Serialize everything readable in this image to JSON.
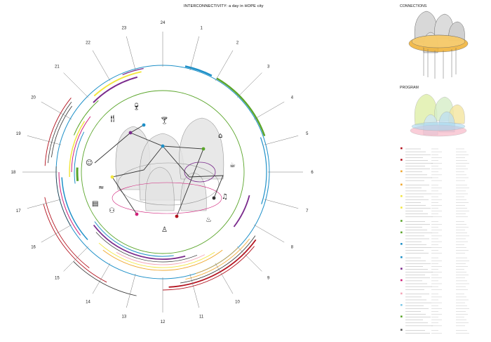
{
  "title": "INTERCONNECTIVITY: a day in HOPE city",
  "hours": [
    "1",
    "2",
    "3",
    "4",
    "5",
    "6",
    "7",
    "8",
    "9",
    "10",
    "11",
    "12",
    "13",
    "14",
    "15",
    "16",
    "17",
    "18",
    "19",
    "20",
    "21",
    "22",
    "23",
    "24"
  ],
  "panels": {
    "connections_title": "CONNECTIONS",
    "program_title": "PROGRAM"
  },
  "colors": {
    "blue": "#1e90c8",
    "green": "#5aa52a",
    "purple": "#7a2a8c",
    "magenta": "#d0207a",
    "yellow": "#f2e640",
    "orange": "#f0a830",
    "red": "#b3121e",
    "gray": "#555555",
    "pink": "#f4a6b8",
    "lightblue": "#7cc8e8"
  },
  "icons": [
    "wine-glass",
    "cocktail",
    "restaurant",
    "home",
    "coffee",
    "theater",
    "swimming",
    "shopping",
    "family",
    "music",
    "bath",
    "meditation"
  ],
  "legend_sections": [
    "Accommodation",
    "Recreation",
    "Business",
    "Education",
    "Health",
    "Community",
    "Culture",
    "Mobility",
    "Outdoor",
    "Retail"
  ]
}
